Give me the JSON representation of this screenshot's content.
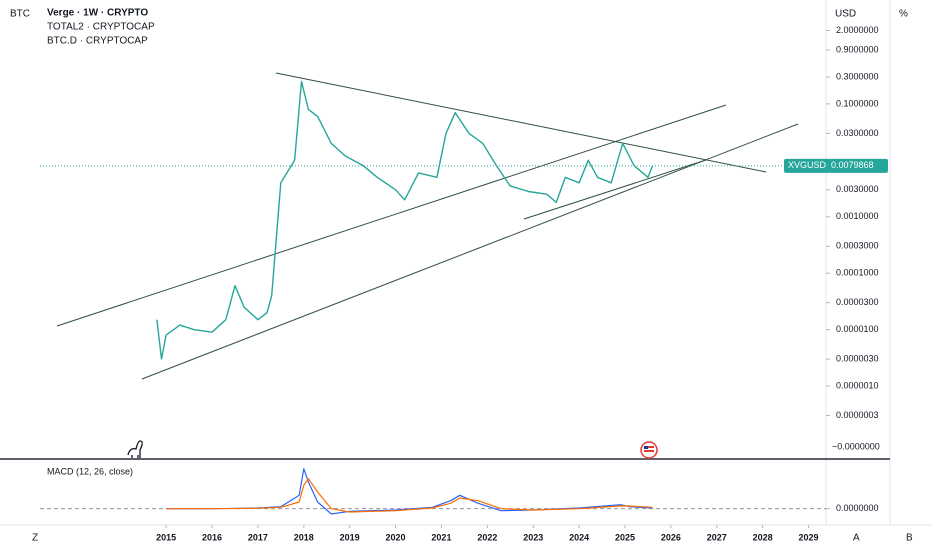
{
  "header": {
    "left_scale": "BTC",
    "symbol": "Verge · 1W · CRYPTO",
    "overlays": [
      "TOTAL2 · CRYPTOCAP",
      "BTC.D · CRYPTOCAP"
    ],
    "currency": "USD",
    "percent": "%"
  },
  "footer": {
    "left": "Z",
    "right": [
      "A",
      "B"
    ]
  },
  "chart_data": [
    {
      "type": "line",
      "log_scale": true,
      "x": [
        2014.8,
        2014.9,
        2015.0,
        2015.3,
        2015.6,
        2016.0,
        2016.3,
        2016.5,
        2016.7,
        2017.0,
        2017.2,
        2017.3,
        2017.5,
        2017.8,
        2017.95,
        2018.1,
        2018.3,
        2018.6,
        2018.9,
        2019.3,
        2019.6,
        2020.0,
        2020.2,
        2020.5,
        2020.9,
        2021.1,
        2021.3,
        2021.6,
        2021.9,
        2022.2,
        2022.5,
        2022.9,
        2023.3,
        2023.5,
        2023.7,
        2024.0,
        2024.2,
        2024.4,
        2024.7,
        2024.95,
        2025.2,
        2025.5,
        2025.6
      ],
      "series": [
        {
          "name": "XVGUSD",
          "color": "#26a69a",
          "values": [
            1.5e-05,
            3e-06,
            8e-06,
            1.2e-05,
            1e-05,
            9e-06,
            1.5e-05,
            6e-05,
            2.5e-05,
            1.5e-05,
            2e-05,
            4e-05,
            0.004,
            0.01,
            0.25,
            0.08,
            0.06,
            0.02,
            0.012,
            0.008,
            0.005,
            0.003,
            0.002,
            0.006,
            0.005,
            0.03,
            0.07,
            0.03,
            0.02,
            0.008,
            0.0035,
            0.0028,
            0.0025,
            0.0018,
            0.005,
            0.004,
            0.01,
            0.005,
            0.004,
            0.02,
            0.008,
            0.005,
            0.0079868
          ]
        }
      ],
      "xlim": [
        2011.38,
        2029.38
      ],
      "xticks": [
        2015,
        2016,
        2017,
        2018,
        2019,
        2020,
        2021,
        2022,
        2023,
        2024,
        2025,
        2026,
        2027,
        2028,
        2029
      ],
      "ylim": [
        5.3e-08,
        6.95
      ],
      "yticks": [
        {
          "value": 2,
          "label": "2.0000000"
        },
        {
          "value": 0.9,
          "label": "0.9000000"
        },
        {
          "value": 0.3,
          "label": "0.3000000"
        },
        {
          "value": 0.1,
          "label": "0.1000000"
        },
        {
          "value": 0.03,
          "label": "0.0300000"
        },
        {
          "value": 0.003,
          "label": "0.0030000"
        },
        {
          "value": 0.001,
          "label": "0.0010000"
        },
        {
          "value": 0.0003,
          "label": "0.0003000"
        },
        {
          "value": 0.0001,
          "label": "0.0001000"
        },
        {
          "value": 3e-05,
          "label": "0.0000300"
        },
        {
          "value": 1e-05,
          "label": "0.0000100"
        },
        {
          "value": 3e-06,
          "label": "0.0000030"
        },
        {
          "value": 1e-06,
          "label": "0.0000010"
        },
        {
          "value": 3e-07,
          "label": "0.0000003"
        }
      ],
      "floor_label": "−0.0000000"
    },
    {
      "type": "line",
      "title": "MACD (12, 26, close)",
      "x": [
        2015,
        2016,
        2017,
        2017.5,
        2017.9,
        2018.0,
        2018.1,
        2018.3,
        2018.6,
        2019,
        2020,
        2020.8,
        2021.2,
        2021.4,
        2021.8,
        2022.3,
        2023,
        2024,
        2024.9,
        2025.1,
        2025.6
      ],
      "series": [
        {
          "color": "#2962ff",
          "values": [
            0,
            0,
            0.001,
            0.003,
            0.02,
            0.06,
            0.04,
            0.01,
            -0.008,
            -0.004,
            -0.002,
            0.002,
            0.012,
            0.02,
            0.008,
            -0.003,
            -0.002,
            0.001,
            0.006,
            0.003,
            0.001
          ]
        },
        {
          "color": "#ff6d00",
          "values": [
            0,
            0,
            0.0005,
            0.002,
            0.01,
            0.035,
            0.045,
            0.025,
            0,
            -0.005,
            -0.003,
            0.001,
            0.008,
            0.016,
            0.012,
            0,
            -0.002,
            0,
            0.004,
            0.004,
            0.002
          ]
        }
      ],
      "xlim": [
        2011.38,
        2029.38
      ],
      "ylim": [
        -0.02,
        0.07
      ],
      "yticks": [
        {
          "value": 0,
          "label": "0.0000000"
        }
      ]
    }
  ]
}
